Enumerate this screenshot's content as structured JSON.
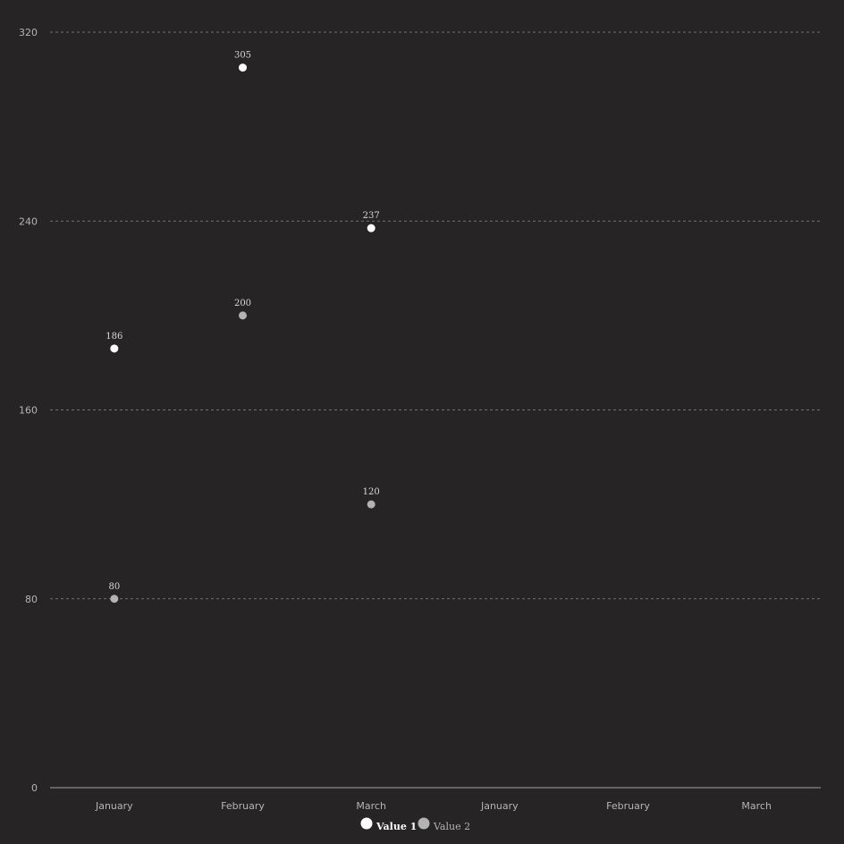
{
  "chart_data": {
    "type": "scatter",
    "categories": [
      "January",
      "February",
      "March",
      "January",
      "February",
      "March"
    ],
    "yticks": [
      0,
      80,
      160,
      240,
      320
    ],
    "ylim": [
      0,
      320
    ],
    "grid": true,
    "legend_placement": "bottom-center",
    "series": [
      {
        "name": "Value 1",
        "color": "#ffffff",
        "values": [
          186,
          305,
          237,
          null,
          null,
          null
        ]
      },
      {
        "name": "Value 2",
        "color": "#b3b3b3",
        "values": [
          80,
          200,
          120,
          null,
          null,
          null
        ]
      }
    ],
    "colors": {
      "background": "#262425",
      "grid": "#8a8a8a",
      "tick_text": "#b5b5b5",
      "label_text": "#d8d8d8"
    }
  }
}
